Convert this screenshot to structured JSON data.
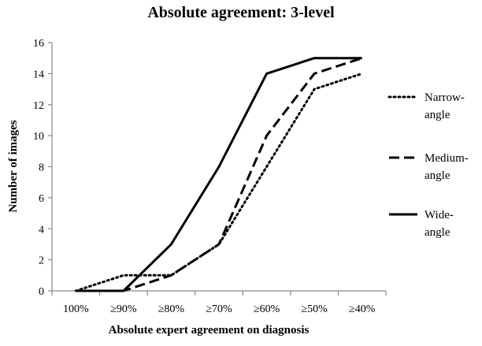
{
  "chart_data": {
    "type": "line",
    "title": "Absolute agreement: 3-level",
    "xlabel": "Absolute expert agreement on diagnosis",
    "ylabel": "Number of images",
    "categories": [
      "100%",
      "≥90%",
      "≥80%",
      "≥70%",
      "≥60%",
      "≥50%",
      "≥40%"
    ],
    "ylim": [
      0,
      16
    ],
    "yticks": [
      0,
      2,
      4,
      6,
      8,
      10,
      12,
      14,
      16
    ],
    "grid": false,
    "legend_position": "right",
    "series": [
      {
        "name": "Narrow-angle",
        "legend_lines": [
          "Narrow-",
          "angle"
        ],
        "dash": "dotted",
        "values": [
          0,
          1,
          1,
          3,
          8,
          13,
          14
        ]
      },
      {
        "name": "Medium-angle",
        "legend_lines": [
          "Medium-",
          "angle"
        ],
        "dash": "dashed",
        "values": [
          0,
          0,
          1,
          3,
          10,
          14,
          15
        ]
      },
      {
        "name": "Wide-angle",
        "legend_lines": [
          "Wide-",
          "angle"
        ],
        "dash": "solid",
        "values": [
          0,
          0,
          3,
          8,
          14,
          15,
          15
        ]
      }
    ]
  }
}
